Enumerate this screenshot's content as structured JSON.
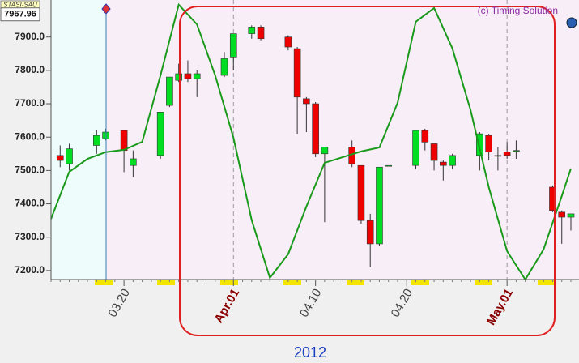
{
  "chart_data": {
    "type": "candlestick",
    "symbol": "STASI-SAU",
    "last_price": 7967.96,
    "copyright": "(c) Timing Solution",
    "year_label": "2012",
    "up_color": "#00dd22",
    "down_color": "#ee0000",
    "x": [
      "03.13",
      "03.14",
      "03.17",
      "03.18",
      "03.20",
      "03.21",
      "03.24",
      "03.25",
      "03.26",
      "03.27",
      "03.28",
      "03.31",
      "04.01",
      "04.03",
      "04.04",
      "04.07",
      "04.08",
      "04.09",
      "04.10",
      "04.11",
      "04.14",
      "04.15",
      "04.16",
      "04.17",
      "04.18",
      "04.21",
      "04.22",
      "04.23",
      "04.24",
      "04.25",
      "04.28",
      "04.29",
      "04.30",
      "05.01",
      "05.02",
      "05.06",
      "05.07",
      "05.08"
    ],
    "open": [
      7545,
      7520,
      7575,
      7595,
      7620,
      7515,
      7545,
      7695,
      7770,
      7790,
      7775,
      7785,
      7840,
      7910,
      7930,
      7900,
      7865,
      7715,
      7700,
      7550,
      7570,
      7515,
      7350,
      7280,
      7515,
      7515,
      7620,
      7580,
      7525,
      7515,
      7545,
      7605,
      7545,
      7555,
      7560,
      7450,
      7375,
      7360
    ],
    "high": [
      7575,
      7580,
      7620,
      7625,
      7620,
      7560,
      7675,
      7780,
      7820,
      7830,
      7800,
      7855,
      7910,
      7935,
      7935,
      7905,
      7870,
      7720,
      7705,
      7570,
      7590,
      7515,
      7370,
      7510,
      7515,
      7620,
      7625,
      7580,
      7530,
      7550,
      7615,
      7610,
      7570,
      7585,
      7590,
      7455,
      7380,
      7370
    ],
    "low": [
      7510,
      7500,
      7550,
      7590,
      7495,
      7480,
      7535,
      7690,
      7765,
      7765,
      7720,
      7780,
      7800,
      7895,
      7890,
      7860,
      7610,
      7615,
      7540,
      7345,
      7510,
      7340,
      7210,
      7275,
      7515,
      7505,
      7560,
      7500,
      7470,
      7505,
      7500,
      7530,
      7500,
      7535,
      7535,
      7375,
      7280,
      7320
    ],
    "close": [
      7530,
      7565,
      7605,
      7615,
      7560,
      7535,
      7675,
      7780,
      7790,
      7775,
      7790,
      7835,
      7910,
      7930,
      7895,
      7870,
      7720,
      7700,
      7550,
      7570,
      7520,
      7350,
      7280,
      7510,
      7515,
      7620,
      7585,
      7530,
      7515,
      7545,
      7610,
      7555,
      7545,
      7545,
      7560,
      7380,
      7360,
      7370
    ],
    "projection": {
      "color": "#1a9a1a",
      "x": [
        "03.12",
        "03.14",
        "03.16",
        "03.18",
        "03.20",
        "03.22",
        "03.24",
        "03.26",
        "03.28",
        "03.30",
        "04.01",
        "04.03",
        "04.05",
        "04.07",
        "04.09",
        "04.11",
        "04.13",
        "04.15",
        "04.17",
        "04.19",
        "04.21",
        "04.23",
        "04.25",
        "04.27",
        "04.29",
        "05.01",
        "05.03",
        "05.05",
        "05.07",
        "05.08"
      ],
      "values": [
        7355,
        7496,
        7535,
        7555,
        7562,
        7586,
        7785,
        7997,
        7938,
        7785,
        7598,
        7351,
        7178,
        7249,
        7392,
        7523,
        7540,
        7557,
        7569,
        7703,
        7946,
        7987,
        7866,
        7681,
        7450,
        7258,
        7173,
        7263,
        7423,
        7506
      ]
    },
    "xlim": [
      "03.12",
      "05.08"
    ],
    "xticks": [
      "03.20",
      {
        "value": "04.01",
        "label": "Apr.01"
      },
      "04.10",
      "04.20",
      {
        "value": "05.01",
        "label": "May.01"
      }
    ],
    "ylim": [
      7173,
      8011
    ],
    "yticks": [
      {
        "value": 7200,
        "label": "7200.0"
      },
      {
        "value": 7300,
        "label": "7300.0"
      },
      {
        "value": 7400,
        "label": "7400.0"
      },
      {
        "value": 7500,
        "label": "7500.0"
      },
      {
        "value": 7600,
        "label": "7600.0"
      },
      {
        "value": 7700,
        "label": "7700.0"
      },
      {
        "value": 7800,
        "label": "7800.0"
      },
      {
        "value": 7900,
        "label": "7900.0"
      }
    ]
  }
}
